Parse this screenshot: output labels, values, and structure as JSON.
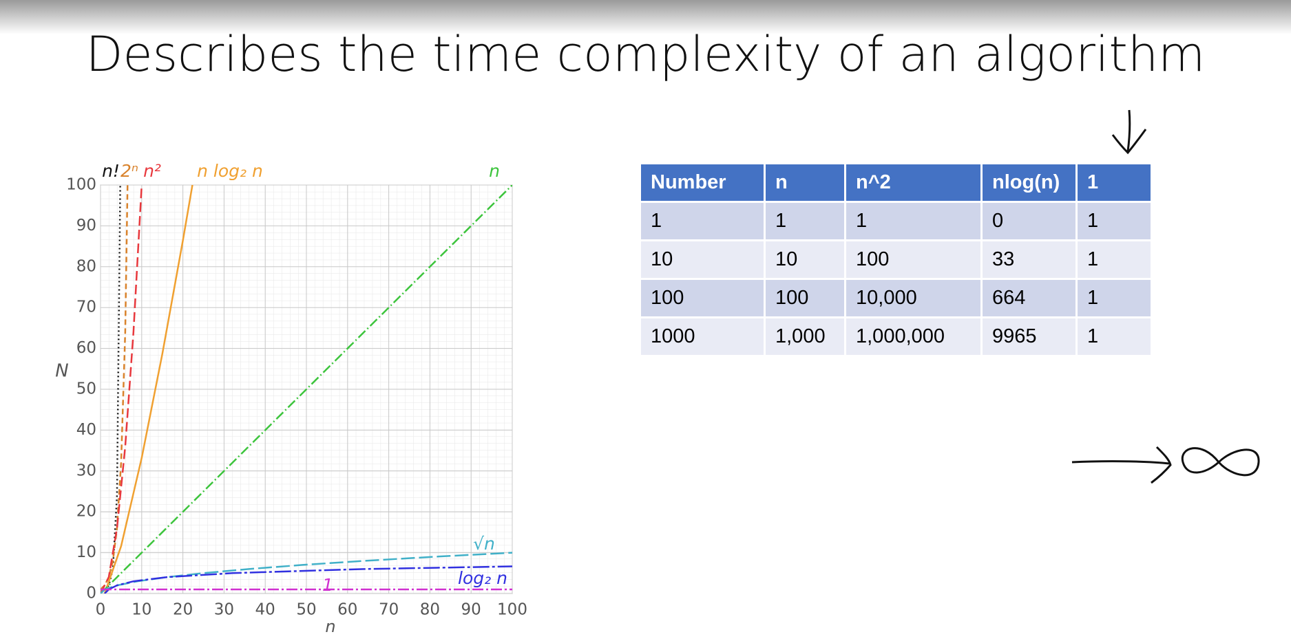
{
  "title": "Describes the time complexity of an algorithm",
  "chart_data": {
    "type": "line",
    "x_label": "n",
    "y_label": "N",
    "xlim": [
      0,
      100
    ],
    "ylim": [
      0,
      100
    ],
    "xticks": [
      0,
      10,
      20,
      30,
      40,
      50,
      60,
      70,
      80,
      90,
      100
    ],
    "yticks": [
      0,
      10,
      20,
      30,
      40,
      50,
      60,
      70,
      80,
      90,
      100
    ],
    "grid": true,
    "series": [
      {
        "name": "n!",
        "color": "#111111",
        "x": [
          0,
          1,
          2,
          3,
          4,
          5
        ],
        "values": [
          1,
          1,
          2,
          6,
          24,
          120
        ]
      },
      {
        "name": "2ⁿ",
        "color": "#d9822b",
        "x": [
          0,
          1,
          2,
          3,
          4,
          5,
          6,
          7
        ],
        "values": [
          1,
          2,
          4,
          8,
          16,
          32,
          64,
          128
        ]
      },
      {
        "name": "n²",
        "color": "#e8383d",
        "x": [
          0,
          2,
          4,
          6,
          8,
          10,
          11
        ],
        "values": [
          0,
          4,
          16,
          36,
          64,
          100,
          121
        ]
      },
      {
        "name": "n log₂ n",
        "color": "#f0a030",
        "x": [
          1,
          5,
          10,
          15,
          20,
          23
        ],
        "values": [
          0,
          11.6,
          33.2,
          58.6,
          86.4,
          104
        ]
      },
      {
        "name": "n",
        "color": "#3cc43c",
        "x": [
          0,
          100
        ],
        "values": [
          0,
          100
        ]
      },
      {
        "name": "√n",
        "color": "#40b0c8",
        "x": [
          0,
          1,
          4,
          9,
          16,
          25,
          36,
          49,
          64,
          81,
          100
        ],
        "values": [
          0,
          1,
          2,
          3,
          4,
          5,
          6,
          7,
          8,
          9,
          10
        ]
      },
      {
        "name": "log₂ n",
        "color": "#3030e0",
        "x": [
          1,
          2,
          4,
          8,
          16,
          32,
          64,
          100
        ],
        "values": [
          0,
          1,
          2,
          3,
          4,
          5,
          6,
          6.64
        ]
      },
      {
        "name": "1",
        "color": "#d030d0",
        "x": [
          0,
          100
        ],
        "values": [
          1,
          1
        ]
      }
    ]
  },
  "table": {
    "header": [
      "Number",
      "n",
      "n^2",
      "nlog(n)",
      "1"
    ],
    "rows": [
      [
        "1",
        "1",
        "1",
        "0",
        "1"
      ],
      [
        "10",
        "10",
        "100",
        "33",
        "1"
      ],
      [
        "100",
        "100",
        "10,000",
        "664",
        "1"
      ],
      [
        "1000",
        "1,000",
        "1,000,000",
        "9965",
        "1"
      ]
    ]
  }
}
